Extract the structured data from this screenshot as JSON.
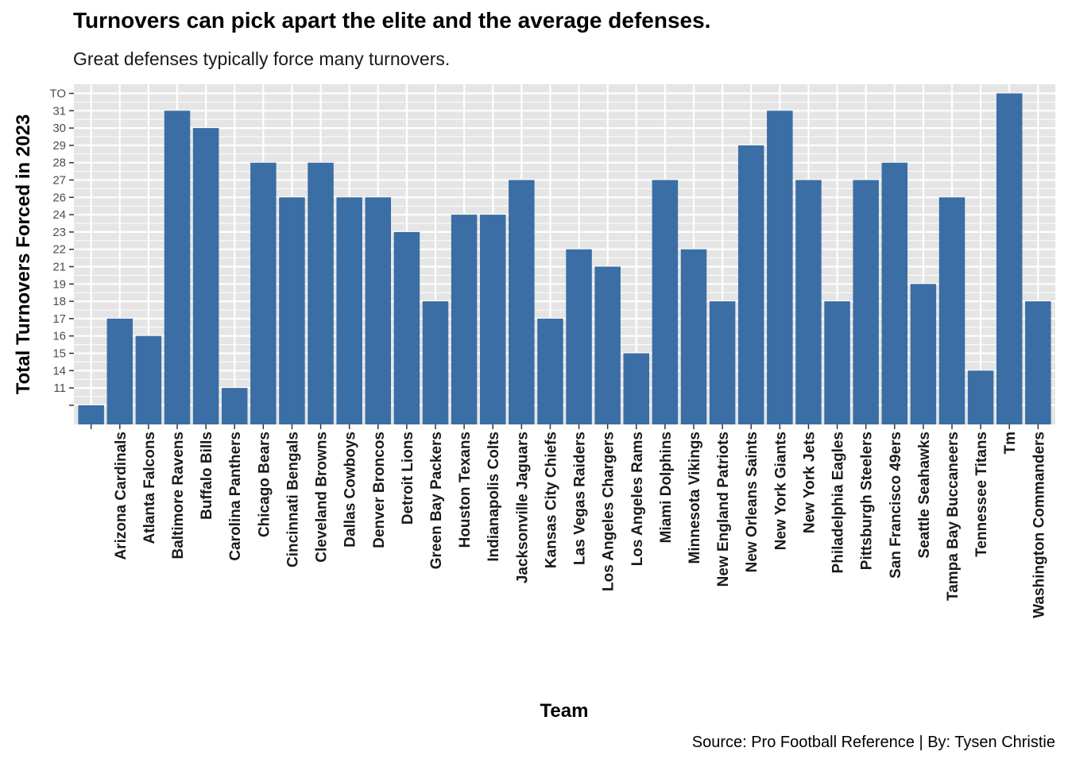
{
  "chart_data": {
    "type": "bar",
    "title": "Turnovers can pick apart the elite and the average defenses.",
    "subtitle": "Great defenses typically force many turnovers.",
    "caption": "Source: Pro Football Reference | By: Tysen Christie",
    "xlabel": "Team",
    "ylabel": "Total Turnovers Forced in 2023",
    "y_tick_labels": [
      "",
      "11",
      "14",
      "15",
      "16",
      "17",
      "18",
      "19",
      "21",
      "22",
      "23",
      "24",
      "26",
      "27",
      "28",
      "29",
      "30",
      "31",
      "TO"
    ],
    "categories": [
      "",
      "Arizona Cardinals",
      "Atlanta Falcons",
      "Baltimore Ravens",
      "Buffalo Bills",
      "Carolina Panthers",
      "Chicago Bears",
      "Cincinnati Bengals",
      "Cleveland Browns",
      "Dallas Cowboys",
      "Denver Broncos",
      "Detroit Lions",
      "Green Bay Packers",
      "Houston Texans",
      "Indianapolis Colts",
      "Jacksonville Jaguars",
      "Kansas City Chiefs",
      "Las Vegas Raiders",
      "Los Angeles Chargers",
      "Los Angeles Rams",
      "Miami Dolphins",
      "Minnesota Vikings",
      "New England Patriots",
      "New Orleans Saints",
      "New York Giants",
      "New York Jets",
      "Philadelphia Eagles",
      "Pittsburgh Steelers",
      "San Francisco 49ers",
      "Seattle Seahawks",
      "Tampa Bay Buccaneers",
      "Tennessee Titans",
      "Tm",
      "Washington Commanders"
    ],
    "values": [
      "",
      "17",
      "16",
      "31",
      "30",
      "11",
      "28",
      "26",
      "28",
      "26",
      "26",
      "23",
      "18",
      "24",
      "24",
      "27",
      "17",
      "22",
      "21",
      "15",
      "27",
      "22",
      "18",
      "29",
      "31",
      "27",
      "18",
      "27",
      "28",
      "19",
      "26",
      "14",
      "TO",
      "18"
    ],
    "bar_color": "#3a6ea5",
    "panel_background": "#e5e5e5",
    "grid_color": "#ffffff",
    "grid": true,
    "legend": "none"
  }
}
